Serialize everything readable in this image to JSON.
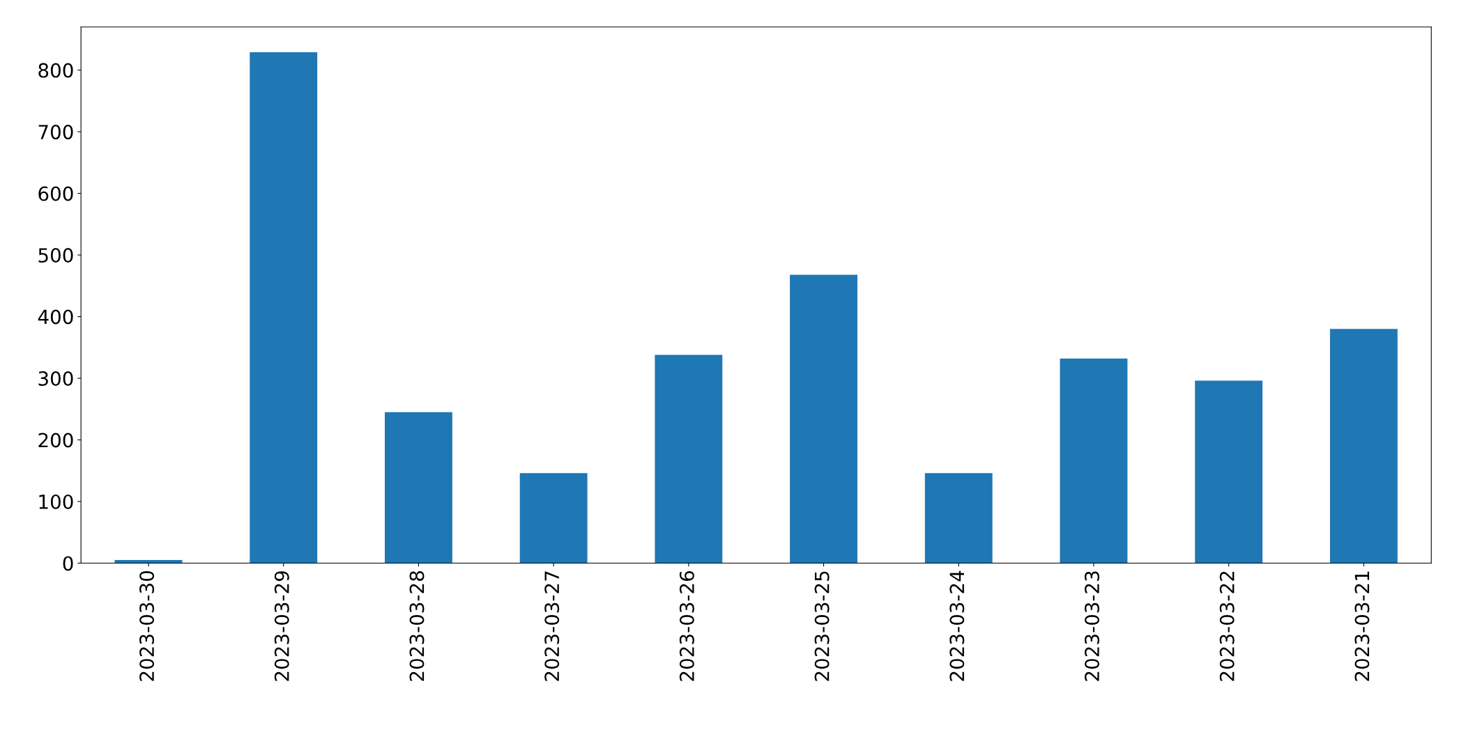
{
  "chart_data": {
    "type": "bar",
    "categories": [
      "2023-03-30",
      "2023-03-29",
      "2023-03-28",
      "2023-03-27",
      "2023-03-26",
      "2023-03-25",
      "2023-03-24",
      "2023-03-23",
      "2023-03-22",
      "2023-03-21"
    ],
    "values": [
      5,
      829,
      245,
      146,
      338,
      468,
      146,
      332,
      296,
      380
    ],
    "color": "#1f77b4",
    "ylim": [
      0,
      870
    ],
    "yticks": [
      0,
      100,
      200,
      300,
      400,
      500,
      600,
      700,
      800
    ],
    "grid": false,
    "legend": false
  }
}
